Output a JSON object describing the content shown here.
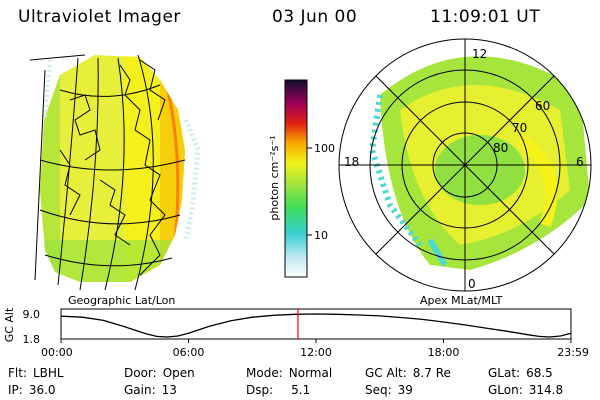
{
  "header": {
    "title": "Ultraviolet Imager",
    "date": "03 Jun 00",
    "time": "11:09:01 UT"
  },
  "left_panel": {
    "label": "Geographic Lat/Lon"
  },
  "right_panel": {
    "label": "Apex MLat/MLT",
    "mlt_labels": [
      "12",
      "18",
      "6",
      "0"
    ],
    "mlat_labels": [
      "60",
      "70",
      "80"
    ]
  },
  "colorbar": {
    "label": "photon cm⁻²s⁻¹",
    "ticks": [
      {
        "value": 100,
        "label": "100"
      },
      {
        "value": 10,
        "label": "10"
      }
    ]
  },
  "chart_data": {
    "type": "line",
    "title": "",
    "ylabel": "GC Alt",
    "yticks": [
      "9.0",
      "1.8"
    ],
    "ylim": [
      1.8,
      9.0
    ],
    "xticks": [
      "00:00",
      "06:00",
      "12:00",
      "18:00",
      "23:59"
    ],
    "xlim_hours": [
      0,
      24
    ],
    "current_time_hours": 11.15,
    "series": [
      {
        "x": [
          0,
          1,
          2,
          3,
          4,
          4.5,
          5,
          5.5,
          6,
          7,
          8,
          9,
          10,
          11,
          12,
          13,
          14,
          15,
          16,
          17,
          18,
          19,
          20,
          21,
          22,
          22.5,
          23,
          23.5,
          24
        ],
        "y": [
          8.3,
          8.0,
          7.0,
          5.0,
          2.8,
          2.0,
          1.8,
          2.1,
          3.0,
          5.2,
          6.9,
          8.0,
          8.6,
          8.9,
          9.0,
          8.9,
          8.7,
          8.4,
          7.9,
          7.3,
          6.5,
          5.6,
          4.6,
          3.6,
          2.5,
          2.0,
          1.8,
          2.1,
          3.0
        ]
      }
    ]
  },
  "footer": {
    "flt": {
      "key": "Flt:",
      "value": "LBHL"
    },
    "ip": {
      "key": "IP:",
      "value": "36.0"
    },
    "door": {
      "key": "Door:",
      "value": "Open"
    },
    "gain": {
      "key": "Gain:",
      "value": "13"
    },
    "mode": {
      "key": "Mode:",
      "value": "Normal"
    },
    "dsp": {
      "key": "Dsp:",
      "value": "5.1"
    },
    "gcalt": {
      "key": "GC Alt:",
      "value": "8.7 Re"
    },
    "seq": {
      "key": "Seq:",
      "value": "39"
    },
    "glat": {
      "key": "GLat:",
      "value": "68.5"
    },
    "glon": {
      "key": "GLon:",
      "value": "314.8"
    }
  },
  "colors": {
    "aurora_green": "#7ee83a",
    "yellow": "#f6f21a",
    "cyan": "#4fd8d0",
    "red_marker": "#ff0000"
  }
}
